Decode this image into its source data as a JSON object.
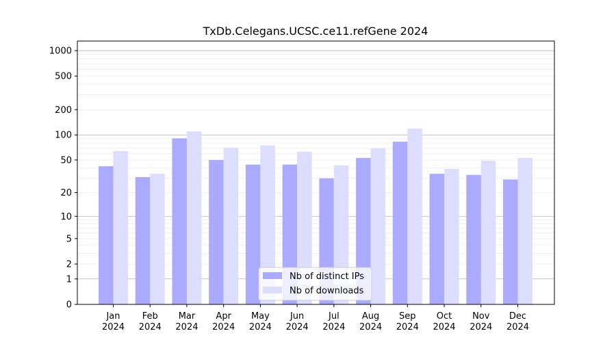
{
  "chart_data": {
    "type": "bar",
    "title": "TxDb.Celegans.UCSC.ce11.refGene 2024",
    "xlabel": "",
    "ylabel": "",
    "yscale": "log1p",
    "ylim": [
      0,
      1300
    ],
    "yticks": [
      "0",
      "1",
      "2",
      "5",
      "10",
      "20",
      "50",
      "100",
      "200",
      "500",
      "1000"
    ],
    "grid": true,
    "legend_position": "bottom-center",
    "categories": [
      {
        "month": "Jan",
        "year": "2024"
      },
      {
        "month": "Feb",
        "year": "2024"
      },
      {
        "month": "Mar",
        "year": "2024"
      },
      {
        "month": "Apr",
        "year": "2024"
      },
      {
        "month": "May",
        "year": "2024"
      },
      {
        "month": "Jun",
        "year": "2024"
      },
      {
        "month": "Jul",
        "year": "2024"
      },
      {
        "month": "Aug",
        "year": "2024"
      },
      {
        "month": "Sep",
        "year": "2024"
      },
      {
        "month": "Oct",
        "year": "2024"
      },
      {
        "month": "Nov",
        "year": "2024"
      },
      {
        "month": "Dec",
        "year": "2024"
      }
    ],
    "series": [
      {
        "name": "Nb of distinct IPs",
        "color": "#aaaaff",
        "values": [
          42,
          31,
          91,
          50,
          44,
          44,
          30,
          53,
          83,
          34,
          33,
          29
        ]
      },
      {
        "name": "Nb of downloads",
        "color": "#ddddff",
        "values": [
          64,
          34,
          110,
          70,
          75,
          63,
          43,
          69,
          119,
          39,
          49,
          53
        ]
      }
    ]
  }
}
